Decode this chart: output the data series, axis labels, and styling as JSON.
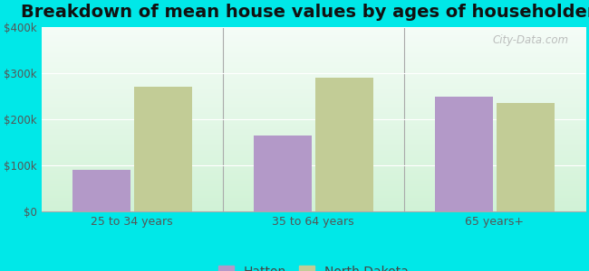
{
  "title": "Breakdown of mean house values by ages of householders",
  "categories": [
    "25 to 34 years",
    "35 to 64 years",
    "65 years+"
  ],
  "series": {
    "Hatton": [
      90000,
      165000,
      250000
    ],
    "North Dakota": [
      270000,
      290000,
      235000
    ]
  },
  "bar_colors": {
    "Hatton": "#b399c8",
    "North Dakota": "#c2cc96"
  },
  "ylim": [
    0,
    400000
  ],
  "yticks": [
    0,
    100000,
    200000,
    300000,
    400000
  ],
  "ytick_labels": [
    "$0",
    "$100k",
    "$200k",
    "$300k",
    "$400k"
  ],
  "background_color": "#00e8e8",
  "title_fontsize": 14,
  "bar_width": 0.32,
  "watermark": "City-Data.com"
}
